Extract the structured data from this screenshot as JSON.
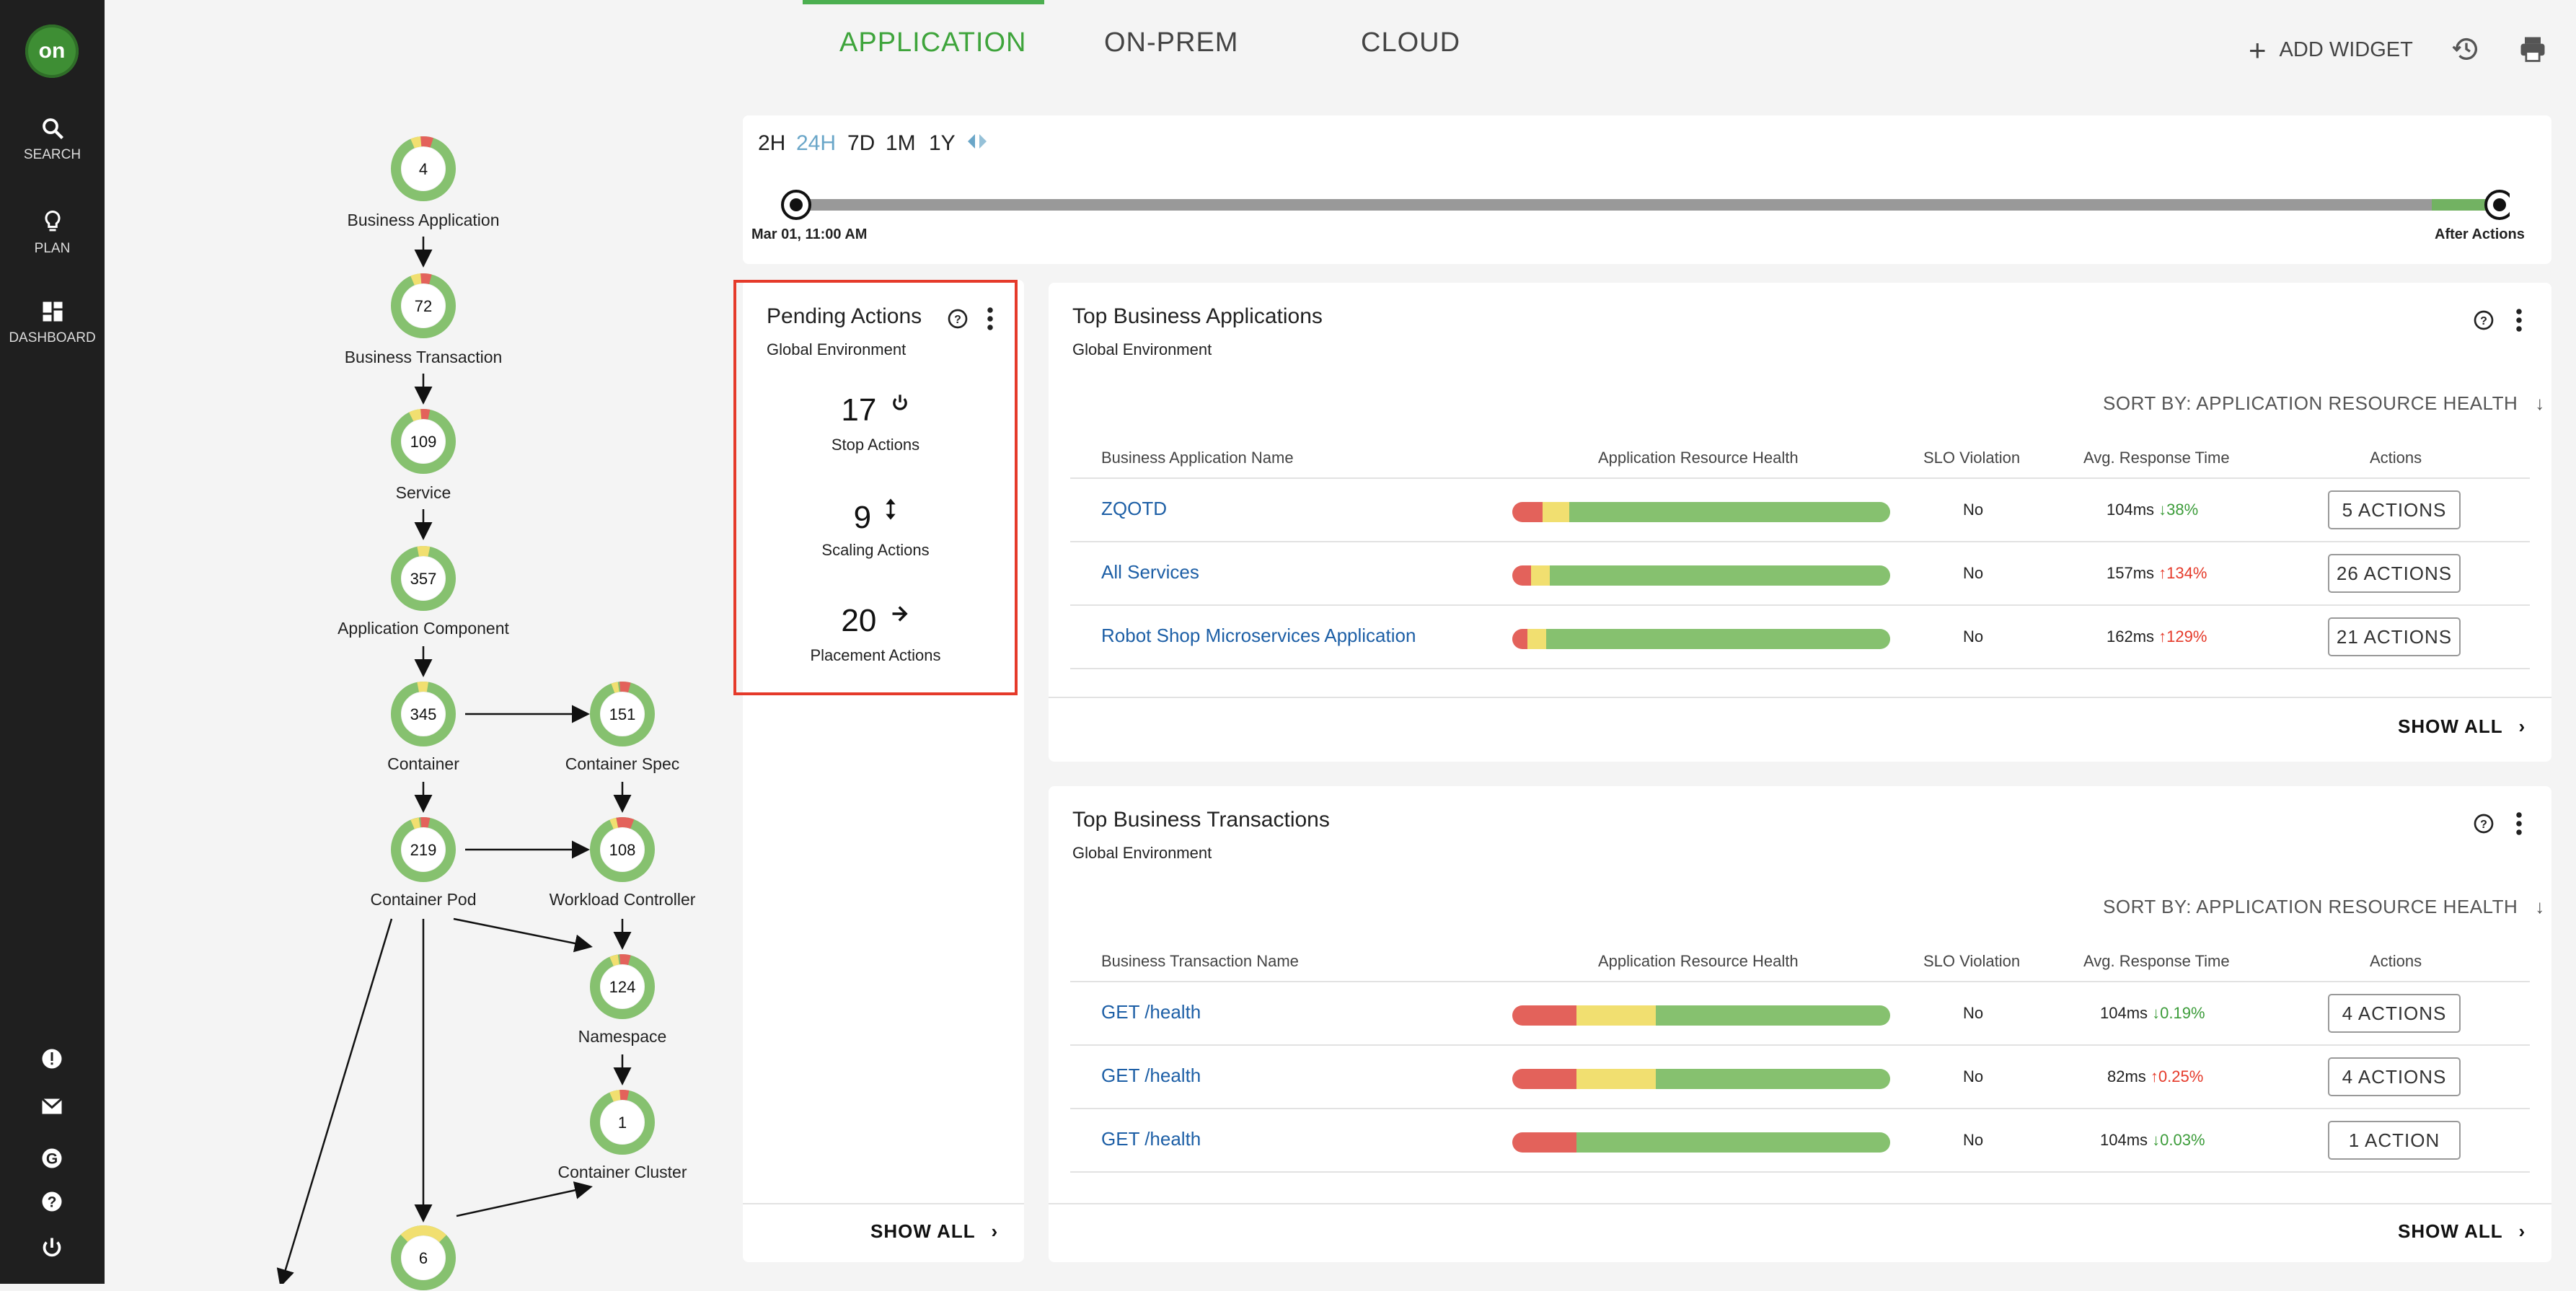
{
  "brand": {
    "logo_text": "on",
    "accent": "#3ea43b"
  },
  "sidebar": {
    "items": [
      {
        "label": "SEARCH",
        "icon": "search-icon"
      },
      {
        "label": "PLAN",
        "icon": "lightbulb-icon"
      },
      {
        "label": "DASHBOARD",
        "icon": "dashboard-icon"
      }
    ],
    "bottom_icons": [
      "alert-icon",
      "mail-icon",
      "google-icon",
      "help-icon",
      "power-icon"
    ]
  },
  "header": {
    "tabs": [
      "APPLICATION",
      "ON-PREM",
      "CLOUD"
    ],
    "active_tab": "APPLICATION",
    "add_widget": "ADD WIDGET"
  },
  "diagram": {
    "nodes": [
      {
        "value": "4",
        "label": "Business Application"
      },
      {
        "value": "72",
        "label": "Business Transaction"
      },
      {
        "value": "109",
        "label": "Service"
      },
      {
        "value": "357",
        "label": "Application Component"
      },
      {
        "value": "345",
        "label": "Container"
      },
      {
        "value": "151",
        "label": "Container Spec"
      },
      {
        "value": "219",
        "label": "Container Pod"
      },
      {
        "value": "108",
        "label": "Workload Controller"
      },
      {
        "value": "124",
        "label": "Namespace"
      },
      {
        "value": "1",
        "label": "Container Cluster"
      },
      {
        "value": "6",
        "label": ""
      }
    ]
  },
  "timeline": {
    "ranges": [
      "2H",
      "24H",
      "7D",
      "1M",
      "1Y"
    ],
    "active_range": "24H",
    "start_label": "Mar 01, 11:00 AM",
    "end_label": "After Actions"
  },
  "pending": {
    "title": "Pending Actions",
    "subtitle": "Global Environment",
    "items": [
      {
        "count": "17",
        "label": "Stop Actions",
        "icon": "power-icon"
      },
      {
        "count": "9",
        "label": "Scaling Actions",
        "icon": "resize-vertical-icon"
      },
      {
        "count": "20",
        "label": "Placement Actions",
        "icon": "arrow-right-icon"
      }
    ],
    "show_all": "SHOW ALL"
  },
  "top_apps": {
    "title": "Top Business Applications",
    "subtitle": "Global Environment",
    "sort": "SORT BY: APPLICATION RESOURCE HEALTH",
    "columns": [
      "Business Application Name",
      "Application Resource Health",
      "SLO Violation",
      "Avg. Response Time",
      "Actions"
    ],
    "rows": [
      {
        "name": "ZQOTD",
        "health": {
          "red": 8,
          "yellow": 7,
          "green": 85
        },
        "slo": "No",
        "resp": "104ms",
        "trend": "down",
        "pct": "38%",
        "actions": "5 ACTIONS"
      },
      {
        "name": "All Services",
        "health": {
          "red": 5,
          "yellow": 5,
          "green": 90
        },
        "slo": "No",
        "resp": "157ms",
        "trend": "up",
        "pct": "134%",
        "actions": "26 ACTIONS"
      },
      {
        "name": "Robot Shop Microservices Application",
        "health": {
          "red": 4,
          "yellow": 5,
          "green": 91
        },
        "slo": "No",
        "resp": "162ms",
        "trend": "up",
        "pct": "129%",
        "actions": "21 ACTIONS"
      }
    ],
    "show_all": "SHOW ALL"
  },
  "top_tx": {
    "title": "Top Business Transactions",
    "subtitle": "Global Environment",
    "sort": "SORT BY: APPLICATION RESOURCE HEALTH",
    "columns": [
      "Business Transaction Name",
      "Application Resource Health",
      "SLO Violation",
      "Avg. Response Time",
      "Actions"
    ],
    "rows": [
      {
        "name": "GET /health",
        "health": {
          "red": 17,
          "yellow": 21,
          "green": 62
        },
        "slo": "No",
        "resp": "104ms",
        "trend": "down",
        "pct": "0.19%",
        "actions": "4 ACTIONS"
      },
      {
        "name": "GET /health",
        "health": {
          "red": 17,
          "yellow": 21,
          "green": 62
        },
        "slo": "No",
        "resp": "82ms",
        "trend": "up",
        "pct": "0.25%",
        "actions": "4 ACTIONS"
      },
      {
        "name": "GET /health",
        "health": {
          "red": 17,
          "yellow": 0,
          "green": 83
        },
        "slo": "No",
        "resp": "104ms",
        "trend": "down",
        "pct": "0.03%",
        "actions": "1 ACTION"
      }
    ],
    "show_all": "SHOW ALL"
  }
}
